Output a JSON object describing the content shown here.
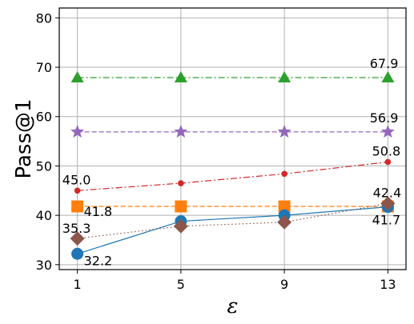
{
  "chart_data": {
    "type": "line",
    "title": "",
    "xlabel": "ε",
    "ylabel": "Pass@1",
    "x": [
      1,
      5,
      9,
      13
    ],
    "x_ticks": [
      "1",
      "5",
      "9",
      "13"
    ],
    "y_ticks": [
      "30",
      "40",
      "50",
      "60",
      "70",
      "80"
    ],
    "xlim": [
      0.3,
      13.7
    ],
    "ylim": [
      29,
      82
    ],
    "grid": true,
    "series": [
      {
        "color": "#2ca02c",
        "marker": "triangle",
        "linestyle": "dashdot",
        "values": [
          67.9,
          67.9,
          67.9,
          67.9
        ]
      },
      {
        "color": "#9467bd",
        "marker": "star",
        "linestyle": "dashed",
        "values": [
          56.9,
          56.9,
          56.9,
          56.9
        ]
      },
      {
        "color": "#d62728",
        "marker": "small-circle",
        "linestyle": "dashdot",
        "values": [
          45.0,
          46.5,
          48.4,
          50.8
        ]
      },
      {
        "color": "#ff7f0e",
        "marker": "square",
        "linestyle": "dashed",
        "values": [
          41.8,
          41.8,
          41.8,
          41.8
        ]
      },
      {
        "color": "#1f77b4",
        "marker": "circle",
        "linestyle": "solid",
        "values": [
          32.2,
          38.8,
          40.0,
          41.7
        ]
      },
      {
        "color": "#8c564b",
        "marker": "diamond",
        "linestyle": "dotted",
        "values": [
          35.3,
          37.8,
          38.6,
          42.4
        ]
      }
    ],
    "annotations": [
      {
        "text": "67.9",
        "series": 0,
        "point": 3
      },
      {
        "text": "56.9",
        "series": 1,
        "point": 3
      },
      {
        "text": "50.8",
        "series": 2,
        "point": 3
      },
      {
        "text": "45.0",
        "series": 2,
        "point": 0
      },
      {
        "text": "41.8",
        "series": 3,
        "point": 0
      },
      {
        "text": "42.4",
        "series": 5,
        "point": 3
      },
      {
        "text": "41.7",
        "series": 4,
        "point": 3
      },
      {
        "text": "35.3",
        "series": 5,
        "point": 0
      },
      {
        "text": "32.2",
        "series": 4,
        "point": 0
      }
    ]
  }
}
